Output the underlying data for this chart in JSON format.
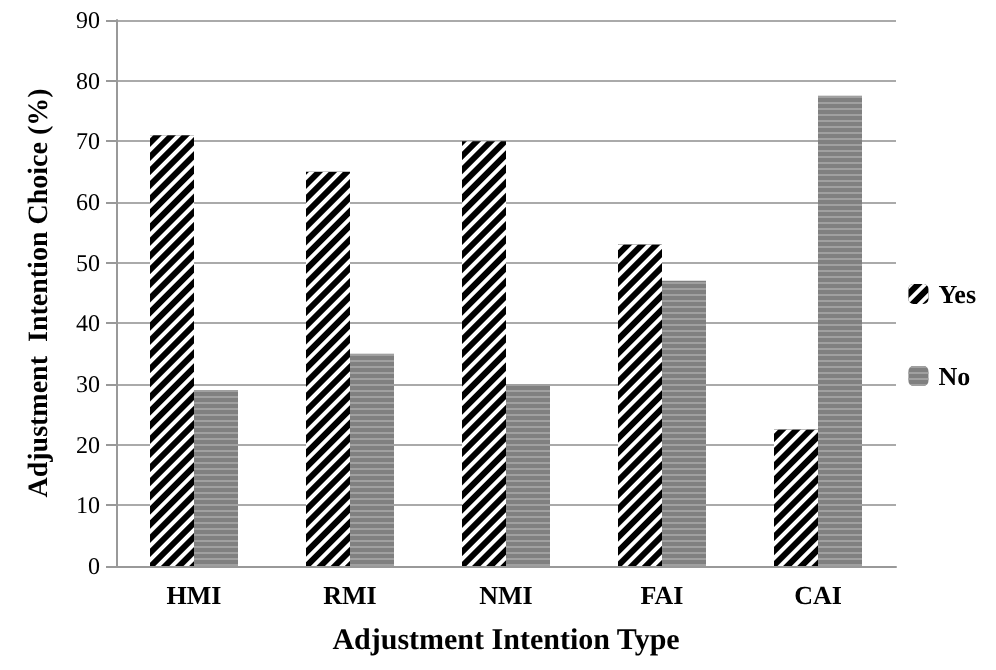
{
  "chart_data": {
    "type": "bar",
    "xlabel": "Adjustment Intention Type",
    "ylabel": "Adjustment  Intention Choice (%)",
    "categories": [
      "HMI",
      "RMI",
      "NMI",
      "FAI",
      "CAI"
    ],
    "series": [
      {
        "name": "Yes",
        "color": "#000000",
        "values": [
          71,
          65,
          70,
          53,
          22.5
        ]
      },
      {
        "name": "No",
        "color": "#808080",
        "values": [
          29,
          35,
          30,
          47,
          77.5
        ]
      }
    ],
    "ylim": [
      0,
      90
    ],
    "yticks": [
      0,
      10,
      20,
      30,
      40,
      50,
      60,
      70,
      80,
      90
    ],
    "grid": "y",
    "legend": "right"
  }
}
